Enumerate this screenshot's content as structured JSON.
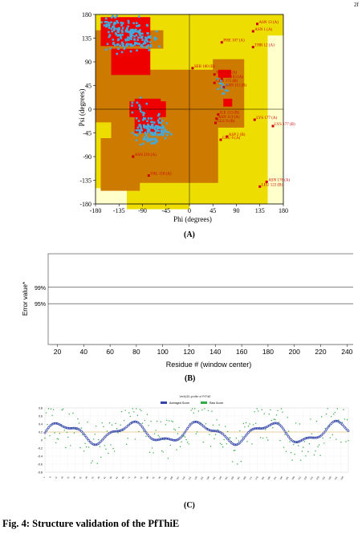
{
  "corner_mark": "2f",
  "caption": "Fig. 4: Structure validation of the PfThiE",
  "panel_labels": {
    "a": "(A)",
    "b": "(B)",
    "c": "(C)"
  },
  "chart_data": [
    {
      "type": "scatter",
      "panel": "A",
      "xlabel": "Phi (degrees)",
      "ylabel": "Psi (degrees)",
      "xlim": [
        -180,
        180
      ],
      "ylim": [
        -180,
        180
      ],
      "xticks": [
        -180,
        -135,
        -90,
        -45,
        0,
        45,
        90,
        135,
        180
      ],
      "yticks": [
        180,
        135,
        90,
        45,
        0,
        -45,
        -90,
        -135,
        -180
      ],
      "region_colors": {
        "core": "#ee0000",
        "allowed": "#cc7a00",
        "generous": "#eedd00",
        "background": "#ffffcc"
      },
      "point_color": "#44aadd",
      "flagged_residues": [
        {
          "label": "ASN 13 (A)",
          "phi": 130,
          "psi": 162
        },
        {
          "label": "ASN 1 (A)",
          "phi": 122,
          "psi": 148
        },
        {
          "label": "PHE 107 (A)",
          "phi": 62,
          "psi": 127
        },
        {
          "label": "THR 12 (A)",
          "phi": 122,
          "psi": 118
        },
        {
          "label": "SER 180 (B)",
          "phi": 6,
          "psi": 78
        },
        {
          "label": "SER 180 (A)",
          "phi": 48,
          "psi": 66
        },
        {
          "label": "ILE 103 (A)",
          "phi": 62,
          "psi": 58
        },
        {
          "label": "GLN 175 (B)",
          "phi": 48,
          "psi": 50
        },
        {
          "label": "ASN 111 (B)",
          "phi": 66,
          "psi": 42
        },
        {
          "label": "ILE 113 (B)",
          "phi": 55,
          "psi": -10
        },
        {
          "label": "ASN 113 (A)",
          "phi": 52,
          "psi": -18
        },
        {
          "label": "GLU 6 (B)",
          "phi": 50,
          "psi": -26
        },
        {
          "label": "LYS 177 (A)",
          "phi": 125,
          "psi": -20
        },
        {
          "label": "LYS 177 (B)",
          "phi": 160,
          "psi": -32
        },
        {
          "label": "GLU 6 (A)",
          "phi": 60,
          "psi": -58
        },
        {
          "label": "ASP 2 (B)",
          "phi": 72,
          "psi": -52
        },
        {
          "label": "ASN 216 (A)",
          "phi": -108,
          "psi": -90
        },
        {
          "label": "VAL 118 (A)",
          "phi": -78,
          "psi": -126
        },
        {
          "label": "ASN 176 (A)",
          "phi": 148,
          "psi": -138
        },
        {
          "label": "LEU 122 (B)",
          "phi": 135,
          "psi": -147
        }
      ]
    },
    {
      "type": "bar",
      "panel": "B",
      "xlabel": "Residue # (window center)",
      "ylabel": "Error value*",
      "xlim": [
        13,
        252
      ],
      "xticks": [
        20,
        40,
        60,
        80,
        100,
        120,
        140,
        160,
        180,
        200,
        220,
        240
      ],
      "ylim": [
        0,
        1
      ],
      "thresholds": [
        {
          "label": "95%",
          "value": 0.45
        },
        {
          "label": "99%",
          "value": 0.63
        }
      ],
      "bar_colors": {
        "normal": "#ffffff",
        "above_95": "#b0b0b0",
        "above_99": "#000000"
      }
    },
    {
      "type": "line",
      "panel": "C",
      "title": "Verify3D-profile of PfThiE",
      "legend": [
        {
          "name": "Averaged Score",
          "color": "#3344aa"
        },
        {
          "name": "Raw Score",
          "color": "#33aa44"
        }
      ],
      "yticks": [
        0.8,
        0.6,
        0.4,
        0.2,
        0,
        -0.2,
        -0.4,
        -0.6,
        -0.8
      ],
      "ylim": [
        -0.8,
        0.8
      ],
      "threshold": 0.2,
      "threshold_color": "#ddaa44",
      "x_count": 250
    }
  ]
}
